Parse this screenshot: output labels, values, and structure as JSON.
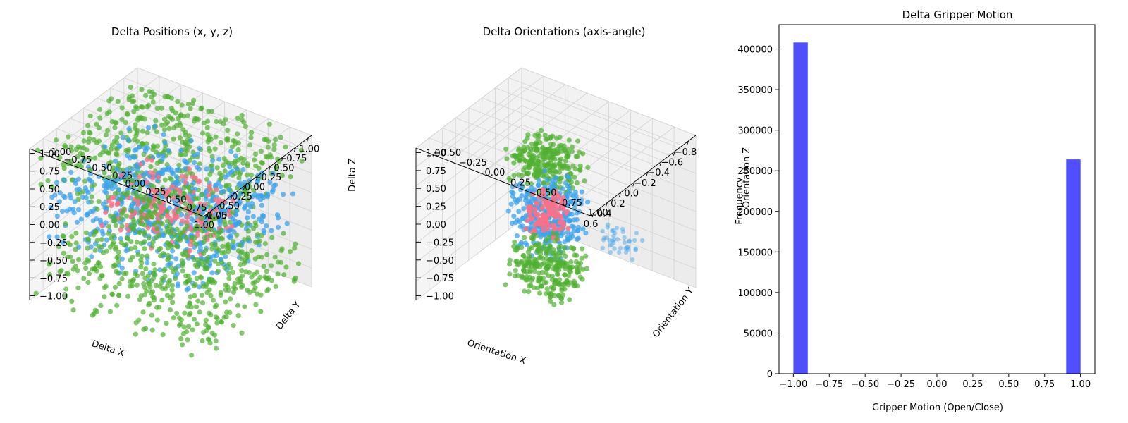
{
  "chart_data": [
    {
      "type": "scatter3d",
      "title": "Delta Positions (x, y, z)",
      "xlabel": "Delta X",
      "ylabel": "Delta Y",
      "zlabel": "Delta Z",
      "xlim": [
        -1.0,
        1.0
      ],
      "ylim": [
        -1.0,
        1.0
      ],
      "zlim": [
        -1.0,
        1.0
      ],
      "xticks": [
        "−1.00",
        "−0.75",
        "−0.50",
        "−0.25",
        "0.00",
        "0.25",
        "0.50",
        "0.75",
        "1.00"
      ],
      "yticks": [
        "−1.00",
        "−0.75",
        "−0.50",
        "−0.25",
        "0.00",
        "0.25",
        "0.50",
        "0.75",
        "1.00"
      ],
      "zticks": [
        "−1.00",
        "−0.75",
        "−0.50",
        "−0.25",
        "0.00",
        "0.25",
        "0.50",
        "0.75",
        "1.00"
      ],
      "grid": true,
      "series_colors": [
        "#f77189",
        "#3ba3ec",
        "#50b131"
      ]
    },
    {
      "type": "scatter3d",
      "title": "Delta Orientations (axis-angle)",
      "xlabel": "Orientation X",
      "ylabel": "Orientation Y",
      "zlabel": "Orientation Z",
      "xlim": [
        -0.9,
        0.6
      ],
      "ylim": [
        -0.6,
        1.05
      ],
      "zlim": [
        -1.0,
        1.0
      ],
      "xticks": [
        "−0.8",
        "−0.6",
        "−0.4",
        "−0.2",
        "0.0",
        "0.2",
        "0.4",
        "0.6"
      ],
      "yticks": [
        "−0.50",
        "−0.25",
        "0.00",
        "0.25",
        "0.50",
        "0.75",
        "1.00"
      ],
      "zticks": [
        "−1.00",
        "−0.75",
        "−0.50",
        "−0.25",
        "0.00",
        "0.25",
        "0.50",
        "0.75",
        "1.00"
      ],
      "grid": true,
      "series_colors": [
        "#f77189",
        "#3ba3ec",
        "#50b131"
      ]
    },
    {
      "type": "bar",
      "title": "Delta Gripper Motion",
      "xlabel": "Gripper Motion (Open/Close)",
      "ylabel": "Frequency",
      "xlim": [
        -1.1,
        1.1
      ],
      "ylim": [
        0,
        430000
      ],
      "xticks": [
        "−1.00",
        "−0.75",
        "−0.50",
        "−0.25",
        "0.00",
        "0.25",
        "0.50",
        "0.75",
        "1.00"
      ],
      "yticks": [
        "0",
        "50000",
        "100000",
        "150000",
        "200000",
        "250000",
        "300000",
        "350000",
        "400000"
      ],
      "bins": [
        {
          "x0": -1.0,
          "x1": -0.9,
          "value": 408000
        },
        {
          "x0": 0.9,
          "x1": 1.0,
          "value": 264000
        }
      ],
      "bar_color": "#4b4bff"
    }
  ]
}
